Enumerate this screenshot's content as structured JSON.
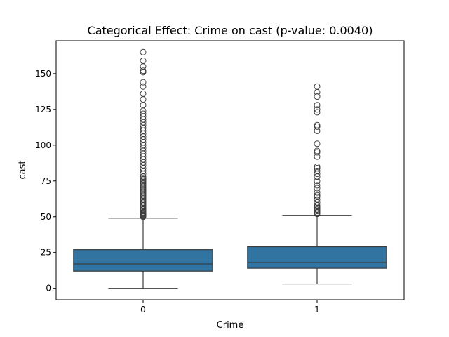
{
  "chart_data": {
    "type": "box",
    "title": "Categorical Effect: Crime on cast (p-value: 0.0040)",
    "xlabel": "Crime",
    "ylabel": "cast",
    "categories": [
      "0",
      "1"
    ],
    "ylim": [
      -8,
      173
    ],
    "yticks": [
      0,
      25,
      50,
      75,
      100,
      125,
      150
    ],
    "box_color": "#3274a1",
    "boxes": [
      {
        "category": "0",
        "whisker_low": 0,
        "q1": 12,
        "median": 17,
        "q3": 27,
        "whisker_high": 49,
        "outliers": [
          50,
          50.5,
          51,
          51.5,
          52,
          52.5,
          53,
          54,
          55,
          56,
          57,
          58,
          59,
          60,
          61,
          62,
          63,
          64,
          65,
          66,
          67,
          68,
          69,
          70,
          71,
          72,
          73,
          74,
          75,
          76,
          77,
          78,
          80,
          82,
          84,
          86,
          88,
          90,
          92,
          94,
          96,
          98,
          100,
          102,
          104,
          106,
          108,
          110,
          112,
          114,
          116,
          118,
          120,
          122,
          124,
          128,
          132,
          136,
          141,
          144,
          151,
          152,
          155,
          159,
          165
        ]
      },
      {
        "category": "1",
        "whisker_low": 3,
        "q1": 14,
        "median": 18,
        "q3": 29,
        "whisker_high": 51,
        "outliers": [
          52,
          53,
          54,
          55,
          56,
          57,
          58,
          60,
          62,
          64,
          65,
          67,
          70,
          72,
          75,
          78,
          80,
          82,
          84,
          85,
          92,
          95,
          96,
          101,
          110,
          113,
          114,
          123,
          125,
          128,
          134,
          137,
          141
        ]
      }
    ]
  }
}
